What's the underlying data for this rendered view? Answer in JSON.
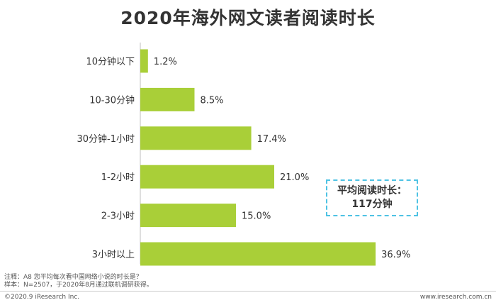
{
  "chart_data": {
    "type": "bar",
    "orientation": "horizontal",
    "title": "2020年海外网文读者阅读时长",
    "categories": [
      "10分钟以下",
      "10-30分钟",
      "30分钟-1小时",
      "1-2小时",
      "2-3小时",
      "3小时以上"
    ],
    "values": [
      1.2,
      8.5,
      17.4,
      21.0,
      15.0,
      36.9
    ],
    "value_labels": [
      "1.2%",
      "8.5%",
      "17.4%",
      "21.0%",
      "15.0%",
      "36.9%"
    ],
    "unit": "%",
    "grid": false,
    "bar_color": "#a9cf38"
  },
  "callout": {
    "line1": "平均阅读时长：",
    "line2": "117分钟"
  },
  "notes": {
    "note": "注释：A8 您平均每次看中国网络小说的时长是？",
    "sample": "样本：N=2507，于2020年8月通过联机调研获得。"
  },
  "footer": {
    "copyright": "©2020.9 iResearch Inc.",
    "website": "www.iresearch.com.cn"
  }
}
